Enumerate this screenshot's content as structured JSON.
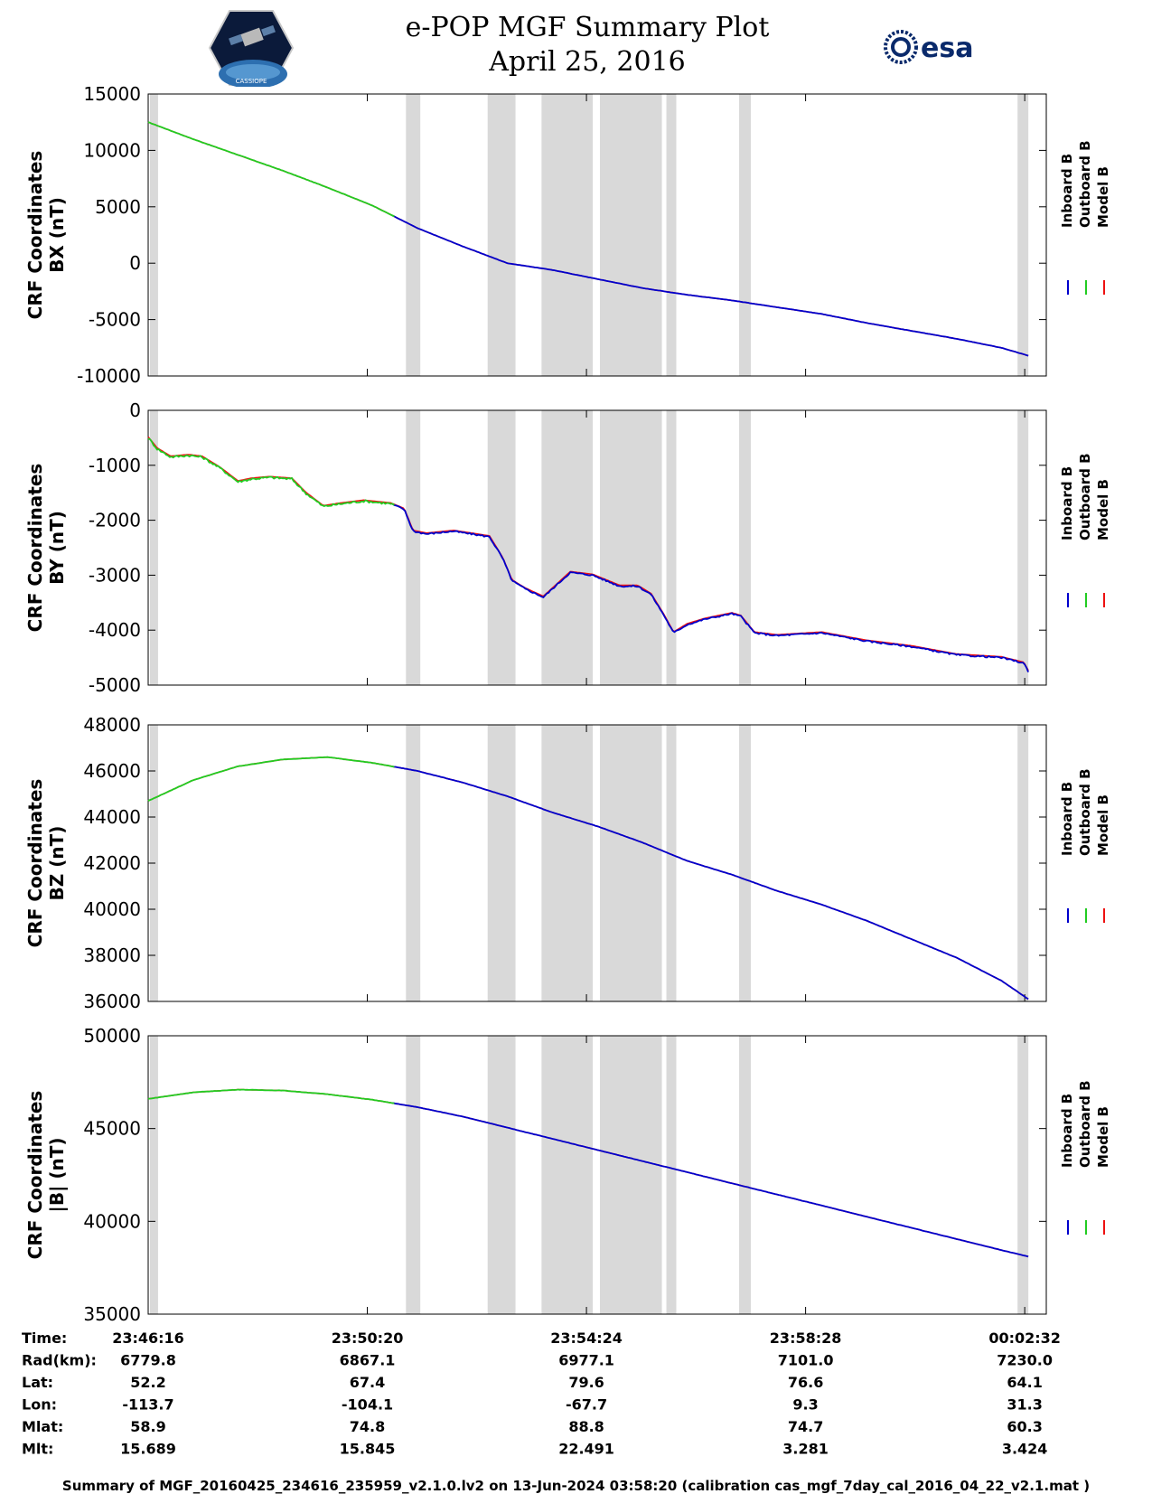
{
  "header": {
    "title_line1": "e-POP MGF Summary Plot",
    "title_line2": "April 25, 2016",
    "left_logo_text": "CASSIOPE",
    "right_logo_text": "esa"
  },
  "colors": {
    "inboard": "#0000cc",
    "outboard": "#22cc22",
    "model": "#ee1111",
    "gap_shading": "#d9d9d9"
  },
  "chart_data": {
    "type": "line",
    "x_range_seconds": [
      0,
      1000
    ],
    "x_ticks": [
      {
        "x": 0,
        "label": "23:46:16"
      },
      {
        "x": 244,
        "label": "23:50:20"
      },
      {
        "x": 488,
        "label": "23:54:24"
      },
      {
        "x": 732,
        "label": "23:58:28"
      },
      {
        "x": 976,
        "label": "00:02:32"
      }
    ],
    "data_gaps": [
      [
        2,
        11
      ],
      [
        287,
        303
      ],
      [
        378,
        409
      ],
      [
        438,
        495
      ],
      [
        503,
        572
      ],
      [
        577,
        588
      ],
      [
        658,
        671
      ],
      [
        968,
        980
      ]
    ],
    "outboard_end_x": 275,
    "legend": [
      "Inboard B",
      "Outboard B",
      "Model B"
    ],
    "panels": [
      {
        "ylabel_line1": "CRF Coordinates",
        "ylabel_line2": "BX (nT)",
        "ylim": [
          -10000,
          15000
        ],
        "y_ticks": [
          15000,
          10000,
          5000,
          0,
          -5000,
          -10000
        ],
        "y_tick_labels": [
          "15000",
          "10000",
          "5000",
          "0",
          "-5000",
          "-10000"
        ],
        "x": [
          0,
          50,
          100,
          150,
          200,
          250,
          300,
          350,
          400,
          450,
          500,
          550,
          600,
          650,
          700,
          750,
          800,
          850,
          900,
          950,
          980
        ],
        "values": [
          12500,
          11000,
          9600,
          8200,
          6700,
          5100,
          3100,
          1500,
          0,
          -600,
          -1400,
          -2200,
          -2800,
          -3300,
          -3900,
          -4500,
          -5300,
          -6000,
          -6700,
          -7500,
          -8200
        ]
      },
      {
        "ylabel_line1": "CRF Coordinates",
        "ylabel_line2": "BY (nT)",
        "ylim": [
          -5000,
          0
        ],
        "y_ticks": [
          0,
          -1000,
          -2000,
          -3000,
          -4000,
          -5000
        ],
        "y_tick_labels": [
          "0",
          "-1000",
          "-2000",
          "-3000",
          "-4000",
          "-5000"
        ],
        "x": [
          0,
          10,
          25,
          45,
          60,
          80,
          100,
          115,
          135,
          160,
          175,
          195,
          215,
          240,
          270,
          285,
          295,
          310,
          340,
          380,
          395,
          405,
          420,
          440,
          470,
          495,
          525,
          545,
          560,
          575,
          585,
          600,
          620,
          650,
          660,
          675,
          700,
          750,
          800,
          850,
          900,
          950,
          975,
          980
        ],
        "values": [
          -500,
          -700,
          -850,
          -820,
          -850,
          -1050,
          -1300,
          -1250,
          -1220,
          -1250,
          -1500,
          -1750,
          -1700,
          -1650,
          -1700,
          -1800,
          -2200,
          -2250,
          -2200,
          -2300,
          -2700,
          -3100,
          -3250,
          -3400,
          -2950,
          -3000,
          -3200,
          -3200,
          -3350,
          -3750,
          -4050,
          -3900,
          -3800,
          -3700,
          -3750,
          -4050,
          -4100,
          -4050,
          -4200,
          -4300,
          -4450,
          -4500,
          -4600,
          -4750
        ]
      },
      {
        "ylabel_line1": "CRF Coordinates",
        "ylabel_line2": "BZ (nT)",
        "ylim": [
          36000,
          48000
        ],
        "y_ticks": [
          48000,
          46000,
          44000,
          42000,
          40000,
          38000,
          36000
        ],
        "y_tick_labels": [
          "48000",
          "46000",
          "44000",
          "42000",
          "40000",
          "38000",
          "36000"
        ],
        "x": [
          0,
          50,
          100,
          150,
          200,
          250,
          300,
          350,
          400,
          450,
          500,
          550,
          600,
          650,
          700,
          750,
          800,
          850,
          900,
          950,
          980
        ],
        "values": [
          44700,
          45600,
          46200,
          46500,
          46600,
          46350,
          46000,
          45500,
          44900,
          44200,
          43600,
          42900,
          42100,
          41500,
          40800,
          40200,
          39500,
          38700,
          37900,
          36900,
          36100
        ]
      },
      {
        "ylabel_line1": "CRF Coordinates",
        "ylabel_line2": "|B| (nT)",
        "ylim": [
          35000,
          50000
        ],
        "y_ticks": [
          50000,
          45000,
          40000,
          35000
        ],
        "y_tick_labels": [
          "50000",
          "45000",
          "40000",
          "35000"
        ],
        "x": [
          0,
          50,
          100,
          150,
          200,
          250,
          300,
          350,
          400,
          450,
          500,
          550,
          600,
          650,
          700,
          750,
          800,
          850,
          900,
          950,
          980
        ],
        "values": [
          46600,
          46950,
          47100,
          47050,
          46850,
          46550,
          46150,
          45650,
          45050,
          44450,
          43850,
          43250,
          42650,
          42050,
          41450,
          40850,
          40250,
          39650,
          39050,
          38450,
          38100
        ]
      }
    ],
    "ephemeris": {
      "row_labels": [
        "Time:",
        "Rad(km):",
        "Lat:",
        "Lon:",
        "Mlat:",
        "Mlt:"
      ],
      "columns": [
        [
          "23:46:16",
          "6779.8",
          "52.2",
          "-113.7",
          "58.9",
          "15.689"
        ],
        [
          "23:50:20",
          "6867.1",
          "67.4",
          "-104.1",
          "74.8",
          "15.845"
        ],
        [
          "23:54:24",
          "6977.1",
          "79.6",
          "-67.7",
          "88.8",
          "22.491"
        ],
        [
          "23:58:28",
          "7101.0",
          "76.6",
          "9.3",
          "74.7",
          "3.281"
        ],
        [
          "00:02:32",
          "7230.0",
          "64.1",
          "31.3",
          "60.3",
          "3.424"
        ]
      ]
    }
  },
  "footer": {
    "text": "Summary of MGF_20160425_234616_235959_v2.1.0.lv2 on 13-Jun-2024 03:58:20 (calibration cas_mgf_7day_cal_2016_04_22_v2.1.mat )"
  }
}
